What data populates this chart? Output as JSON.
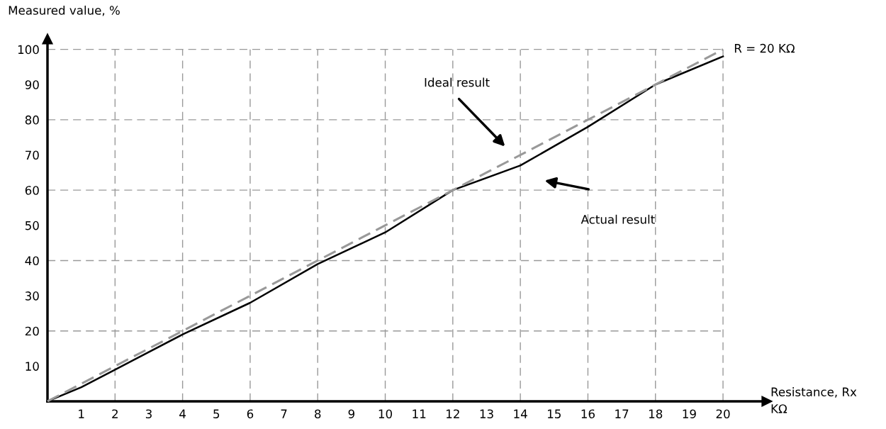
{
  "chart_data": {
    "type": "line",
    "xlabel": "Resistance, Rx\nKΩ",
    "ylabel": "Measured value, %",
    "xlim": [
      0,
      21.3
    ],
    "ylim": [
      0,
      103
    ],
    "xticks": [
      1,
      2,
      3,
      4,
      5,
      6,
      7,
      8,
      9,
      10,
      11,
      12,
      13,
      14,
      15,
      16,
      17,
      18,
      19,
      20
    ],
    "yticks": [
      10,
      20,
      30,
      40,
      50,
      60,
      70,
      80,
      90,
      100
    ],
    "grid": true,
    "marker": "none",
    "series": [
      {
        "color": "#999999",
        "line_style": "dashed",
        "x": [
          0,
          20
        ],
        "values": [
          0,
          100
        ]
      },
      {
        "color": "#000000",
        "line_style": "solid",
        "x": [
          0,
          1,
          2,
          4,
          6,
          8,
          10,
          12,
          14,
          16,
          18,
          20
        ],
        "values": [
          0,
          4,
          9,
          19,
          28,
          39,
          48,
          60,
          67,
          78,
          90,
          98
        ]
      }
    ],
    "annotations": [
      "Ideal result",
      "Actual result",
      "R = 20 KΩ"
    ]
  }
}
